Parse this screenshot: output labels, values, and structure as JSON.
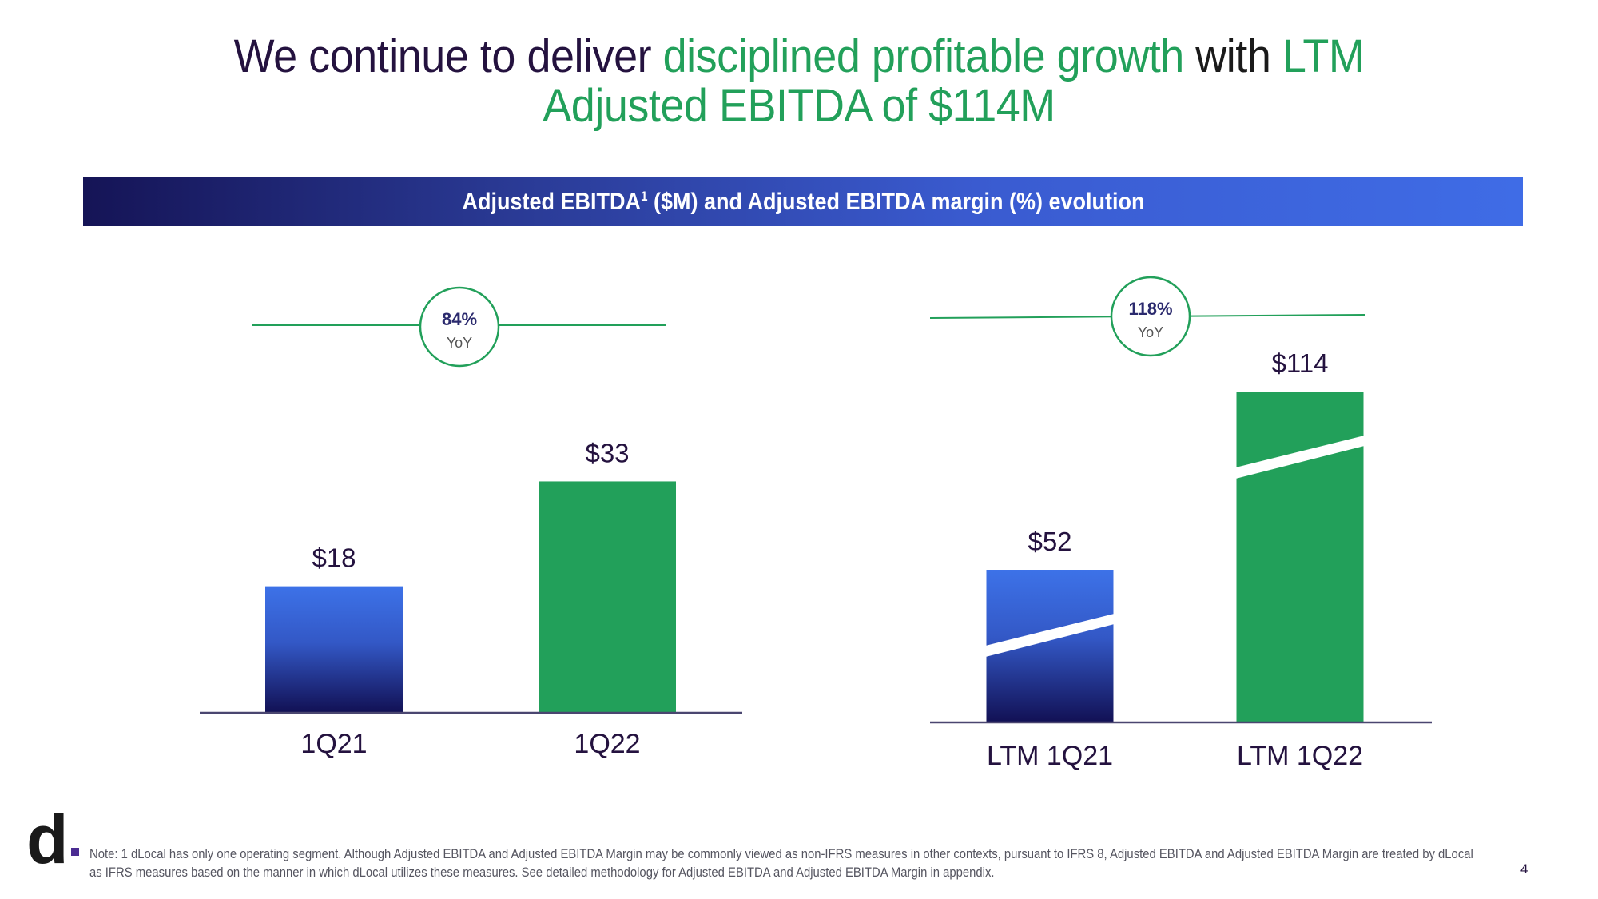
{
  "title": {
    "segments": [
      {
        "text": "We continue to deliver ",
        "tone": "dark"
      },
      {
        "text": "disciplined profitable growth",
        "tone": "green"
      },
      {
        "text": " with ",
        "tone": "black"
      },
      {
        "text": "LTM",
        "tone": "green"
      }
    ],
    "line2": "Adjusted EBITDA of $114M"
  },
  "banner": {
    "prefix": "Adjusted EBITDA",
    "superscript": "1",
    "suffix": " ($M) and Adjusted EBITDA margin (%) evolution"
  },
  "colors": {
    "green": "#22a05a",
    "blue_top": "#3d72e8",
    "blue_bottom": "#121155",
    "axis": "#4a4670",
    "text_dark": "#24123f"
  },
  "chart_data": [
    {
      "type": "bar",
      "title": "Quarterly Adjusted EBITDA ($M)",
      "categories": [
        "1Q21",
        "1Q22"
      ],
      "values": [
        18,
        33
      ],
      "value_labels": [
        "$18",
        "$33"
      ],
      "bar_styles": [
        "blue-gradient",
        "green"
      ],
      "axis_break": [
        false,
        false
      ],
      "growth": {
        "value": "84%",
        "label": "YoY"
      },
      "xlabel": "",
      "ylabel": "",
      "ylim": [
        0,
        55
      ],
      "grid": false
    },
    {
      "type": "bar",
      "title": "LTM Adjusted EBITDA ($M)",
      "categories": [
        "LTM 1Q21",
        "LTM 1Q22"
      ],
      "values": [
        52,
        114
      ],
      "value_labels": [
        "$52",
        "$114"
      ],
      "bar_styles": [
        "blue-gradient",
        "green"
      ],
      "axis_break": [
        true,
        true
      ],
      "growth": {
        "value": "118%",
        "label": "YoY"
      },
      "xlabel": "",
      "ylabel": "",
      "grid": false
    }
  ],
  "footer": {
    "logo": "d",
    "note": "Note: 1 dLocal has only one operating segment. Although Adjusted EBITDA and Adjusted EBITDA Margin may be commonly viewed as non-IFRS measures in other contexts, pursuant to IFRS 8, Adjusted EBITDA and Adjusted EBITDA Margin are treated by dLocal as IFRS measures based on the manner in which dLocal utilizes these measures. See detailed methodology for Adjusted EBITDA and Adjusted EBITDA Margin in appendix.",
    "page_number": "4"
  }
}
